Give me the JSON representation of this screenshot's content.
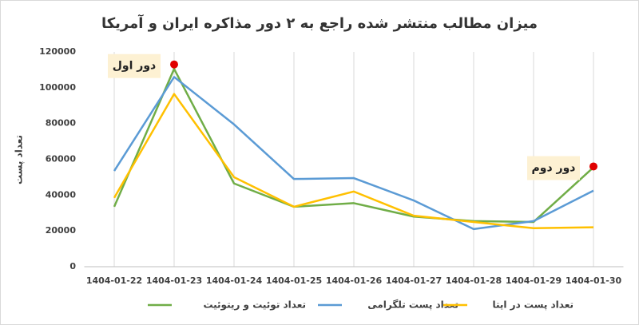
{
  "chart_data": {
    "type": "line",
    "title": "میزان مطالب منتشر شده راجع به ۲ دور مذاکره ایران و آمریکا",
    "y_label": "تعداد پست",
    "categories": [
      "1404-01-22",
      "1404-01-23",
      "1404-01-24",
      "1404-01-25",
      "1404-01-26",
      "1404-01-27",
      "1404-01-28",
      "1404-01-29",
      "1404-01-30"
    ],
    "series": [
      {
        "name": "تعداد توئیت و ریتوئیت",
        "color": "#70ad47",
        "values": [
          33500,
          110500,
          46500,
          33500,
          35500,
          28000,
          25500,
          25000,
          55500
        ]
      },
      {
        "name": "تعداد پست تلگرامی",
        "color": "#5b9bd5",
        "values": [
          53500,
          106000,
          79500,
          49000,
          49500,
          37000,
          21000,
          25500,
          42500
        ]
      },
      {
        "name": "تعداد پست در ایتا",
        "color": "#ffc000",
        "values": [
          38500,
          96500,
          50000,
          33500,
          42000,
          28500,
          25000,
          21500,
          22000
        ]
      }
    ],
    "annotations": [
      {
        "text": "دور اول",
        "category": "1404-01-23",
        "value": 113000,
        "color": "#e00000"
      },
      {
        "text": "دور دوم",
        "category": "1404-01-30",
        "value": 56000,
        "color": "#e00000"
      }
    ],
    "ylim": [
      0,
      120000
    ],
    "yticks": [
      0,
      20000,
      40000,
      60000,
      80000,
      100000,
      120000
    ],
    "grid": "vertical"
  }
}
